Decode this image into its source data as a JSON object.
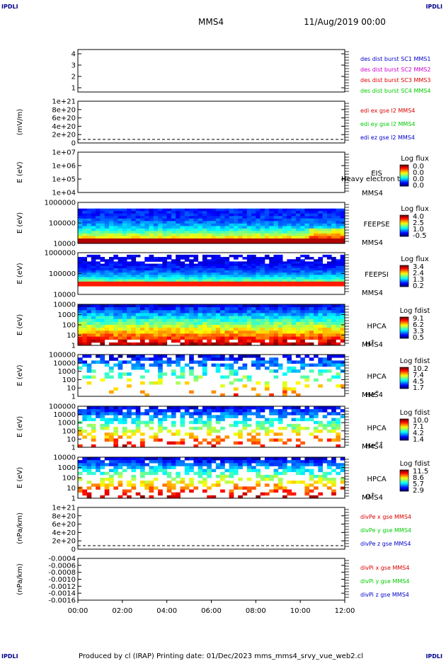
{
  "corners": {
    "tl": "IPDLI",
    "tr": "IPDLI",
    "bl": "IPDLI",
    "br": "IPDLI"
  },
  "header": {
    "spacecraft": "MMS4",
    "date": "11/Aug/2019 00:00"
  },
  "footer": "Produced by cl (IRAP)   Printing date: 01/Dec/2023   mms_mms4_srvy_vue_web2.cl",
  "colors": {
    "c1": "#0000cc",
    "c2": "#cc00cc",
    "c3": "#dd0000",
    "c4": "#00cc00"
  },
  "chart_data": [
    {
      "id": "p1",
      "type": "line",
      "yticks": [
        "1",
        "2",
        "3",
        "4"
      ],
      "legend": [
        {
          "text": "des dist burst SC1 MMS1",
          "color": "#0000cc"
        },
        {
          "text": "des dist burst SC2 MMS2",
          "color": "#cc00cc"
        },
        {
          "text": "des dist burst SC3 MMS3",
          "color": "#dd0000"
        },
        {
          "text": "des dist burst SC4 MMS4",
          "color": "#00cc00"
        }
      ],
      "series": []
    },
    {
      "id": "p2",
      "type": "line",
      "ylabel": "(mV/m)",
      "yticks": [
        "0",
        "2e+20",
        "4e+20",
        "6e+20",
        "8e+20",
        "1e+21"
      ],
      "legend": [
        {
          "text": "edi ex gse l2 MMS4",
          "color": "#dd0000"
        },
        {
          "text": "edi ey gse l2 MMS4",
          "color": "#00cc00"
        },
        {
          "text": "edi ez gse l2 MMS4",
          "color": "#0000cc"
        }
      ],
      "zero_line": true
    },
    {
      "id": "p3",
      "type": "heatmap",
      "ylabel": "E (eV)",
      "yticks": [
        "1e+04",
        "1e+05",
        "1e+06",
        "1e+07"
      ],
      "labels": [
        "EIS",
        "MMS4"
      ],
      "overlay": "Heavy electron to",
      "colorbar": {
        "title": "Log flux",
        "ticks": [
          "0.0",
          "0.0",
          "0.0",
          "0.0"
        ]
      }
    },
    {
      "id": "p4",
      "type": "heatmap",
      "ylabel": "E (eV)",
      "yticks": [
        "10000",
        "100000",
        "1000000"
      ],
      "labels": [
        "FEEPSE",
        "MMS4"
      ],
      "colorbar": {
        "title": "Log flux",
        "ticks": [
          "4.0",
          "2.5",
          "1.0",
          "-0.5"
        ]
      }
    },
    {
      "id": "p5",
      "type": "heatmap",
      "ylabel": "E (eV)",
      "yticks": [
        "10000",
        "100000",
        "1000000"
      ],
      "labels": [
        "FEEPSI",
        "MMS4"
      ],
      "colorbar": {
        "title": "Log flux",
        "ticks": [
          "3.4",
          "2.4",
          "1.3",
          "0.2"
        ]
      }
    },
    {
      "id": "p6",
      "type": "heatmap",
      "ylabel": "E (eV)",
      "yticks": [
        "1",
        "10",
        "100",
        "1000",
        "10000"
      ],
      "labels": [
        "HPCA",
        "MMS4"
      ],
      "species": "H",
      "charge": "+",
      "colorbar": {
        "title": "Log fdist",
        "ticks": [
          "9.1",
          "6.2",
          "3.3",
          "0.5"
        ]
      }
    },
    {
      "id": "p7",
      "type": "heatmap",
      "ylabel": "E (eV)",
      "yticks": [
        "1",
        "10",
        "100",
        "1000",
        "10000",
        "100000"
      ],
      "labels": [
        "HPCA",
        "MMS4"
      ],
      "species": "He",
      "charge": "+",
      "colorbar": {
        "title": "Log fdist",
        "ticks": [
          "10.2",
          "7.4",
          "4.5",
          "1.7"
        ]
      }
    },
    {
      "id": "p8",
      "type": "heatmap",
      "ylabel": "E (eV)",
      "yticks": [
        "1",
        "10",
        "100",
        "1000",
        "10000",
        "100000"
      ],
      "labels": [
        "HPCA",
        "MMS4"
      ],
      "species": "He",
      "charge": "++",
      "colorbar": {
        "title": "Log fdist",
        "ticks": [
          "10.0",
          "7.1",
          "4.2",
          "1.4"
        ]
      }
    },
    {
      "id": "p9",
      "type": "heatmap",
      "ylabel": "E (eV)",
      "yticks": [
        "1",
        "10",
        "100",
        "1000",
        "10000"
      ],
      "labels": [
        "HPCA",
        "MMS4"
      ],
      "species": "O",
      "charge": "+",
      "colorbar": {
        "title": "Log fdist",
        "ticks": [
          "11.5",
          "8.6",
          "5.7",
          "2.9"
        ]
      }
    },
    {
      "id": "p10",
      "type": "line",
      "ylabel": "(nPa/km)",
      "yticks": [
        "0",
        "2e+20",
        "4e+20",
        "6e+20",
        "8e+20",
        "1e+21"
      ],
      "legend": [
        {
          "text": "divPe x gse MMS4",
          "color": "#dd0000"
        },
        {
          "text": "divPe y gse MMS4",
          "color": "#00cc00"
        },
        {
          "text": "divPe z gse MMS4",
          "color": "#0000cc"
        }
      ],
      "zero_line": true
    },
    {
      "id": "p11",
      "type": "line",
      "ylabel": "(nPa/km)",
      "yticks": [
        "-0.0016",
        "-0.0014",
        "-0.0012",
        "-0.0010",
        "-0.0008",
        "-0.0006",
        "-0.0004"
      ],
      "legend": [
        {
          "text": "divPi x gse MMS4",
          "color": "#dd0000"
        },
        {
          "text": "divPi y gse MMS4",
          "color": "#00cc00"
        },
        {
          "text": "divPi z gse MMS4",
          "color": "#0000cc"
        }
      ]
    }
  ],
  "xaxis": {
    "ticks": [
      "00:00",
      "02:00",
      "04:00",
      "06:00",
      "08:00",
      "10:00",
      "12:00"
    ]
  }
}
